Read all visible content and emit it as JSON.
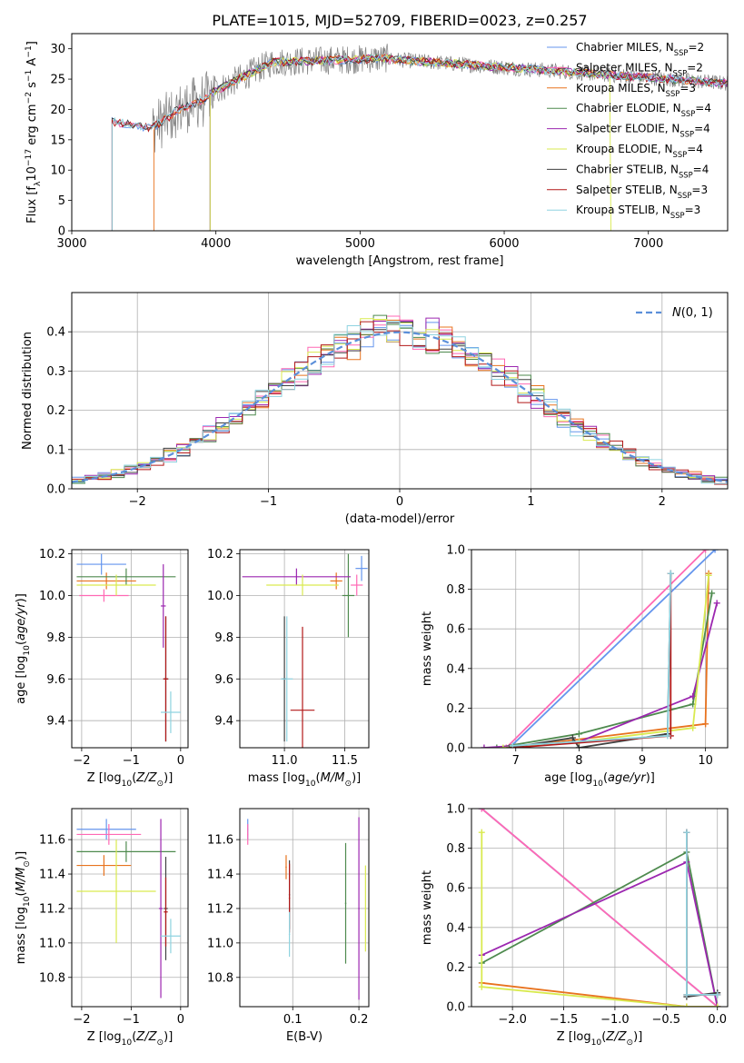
{
  "figure": {
    "title": "PLATE=1015, MJD=52709, FIBERID=0023, z=0.257"
  },
  "series_styles": [
    {
      "name": "Chabrier MILES",
      "nssp": "2",
      "color": "#6495ed"
    },
    {
      "name": "Salpeter MILES",
      "nssp": "2",
      "color": "#ff69b4"
    },
    {
      "name": "Kroupa MILES",
      "nssp": "3",
      "color": "#e8731f"
    },
    {
      "name": "Chabrier ELODIE",
      "nssp": "4",
      "color": "#4e8a4e"
    },
    {
      "name": "Salpeter ELODIE",
      "nssp": "4",
      "color": "#9c27b0"
    },
    {
      "name": "Kroupa ELODIE",
      "nssp": "4",
      "color": "#d9ea4f"
    },
    {
      "name": "Chabrier STELIB",
      "nssp": "4",
      "color": "#404040"
    },
    {
      "name": "Salpeter STELIB",
      "nssp": "3",
      "color": "#b21818"
    },
    {
      "name": "Kroupa STELIB",
      "nssp": "3",
      "color": "#8fd3e0"
    }
  ],
  "chart_data": [
    {
      "id": "spectrum",
      "type": "line",
      "xlabel": "wavelength [Angstrom, rest frame]",
      "ylabel": "Flux [f_λ10^-17 erg cm^-2 s^-1 A^-1]",
      "xlim": [
        3000,
        7550
      ],
      "ylim": [
        0,
        32.5
      ],
      "xticks": [
        3000,
        4000,
        5000,
        6000,
        7000
      ],
      "yticks": [
        0,
        5,
        10,
        15,
        20,
        25,
        30
      ],
      "legend_location": "upper right",
      "data_series": {
        "name": "data",
        "color": "#808080",
        "x_range": [
          3280,
          7550
        ]
      },
      "model_starts": [
        3280,
        3280,
        3570,
        3960,
        3960,
        3960,
        3280,
        3280,
        3280
      ],
      "model_ends": [
        7550,
        7550,
        7550,
        7550,
        7550,
        6740,
        7550,
        7550,
        7550
      ]
    },
    {
      "id": "residuals",
      "type": "histogram",
      "xlabel": "(data-model)/error",
      "ylabel": "Normed distribution",
      "xlim": [
        -2.5,
        2.5
      ],
      "ylim": [
        0,
        0.5
      ],
      "xticks": [
        -2,
        -1,
        0,
        1,
        2
      ],
      "yticks": [
        0.0,
        0.1,
        0.2,
        0.3,
        0.4
      ],
      "grid": true,
      "bin_width": 0.1,
      "reference_curve": {
        "name": "N(0,1)",
        "style": "dashed",
        "color": "#5b8fd9"
      },
      "legend_location": "upper right"
    },
    {
      "id": "age-vs-Z",
      "type": "errorbar",
      "xlabel": "Z [log10(Z/Z⊙)]",
      "ylabel": "age [log10(age/yr)]",
      "xlim": [
        -2.2,
        0.15
      ],
      "ylim": [
        9.27,
        10.22
      ],
      "xticks": [
        -2,
        -1,
        0
      ],
      "yticks": [
        9.4,
        9.6,
        9.8,
        10.0,
        10.2
      ],
      "grid": true,
      "points": [
        {
          "series": 0,
          "x": -1.6,
          "xerr": 0.5,
          "y": 10.15,
          "yerr": 0.05
        },
        {
          "series": 1,
          "x": -1.55,
          "xerr": 0.5,
          "y": 10.0,
          "yerr": 0.03
        },
        {
          "series": 2,
          "x": -1.5,
          "xerr": 0.6,
          "y": 10.07,
          "yerr": 0.04
        },
        {
          "series": 3,
          "x": -1.1,
          "xerr": 1.0,
          "y": 10.09,
          "yerr": 0.04
        },
        {
          "series": 4,
          "x": -0.35,
          "xerr": 0.05,
          "y": 9.95,
          "yerr": 0.2
        },
        {
          "series": 5,
          "x": -1.3,
          "xerr": 0.8,
          "y": 10.05,
          "yerr": 0.05
        },
        {
          "series": 6,
          "x": -0.3,
          "xerr": 0.05,
          "y": 9.6,
          "yerr": 0.3
        },
        {
          "series": 7,
          "x": -0.3,
          "xerr": 0.05,
          "y": 9.6,
          "yerr": 0.3
        },
        {
          "series": 8,
          "x": -0.2,
          "xerr": 0.2,
          "y": 9.44,
          "yerr": 0.1
        }
      ]
    },
    {
      "id": "age-vs-mass",
      "type": "errorbar",
      "xlabel": "mass [log10(M/M⊙)]",
      "ylabel": "",
      "xlim": [
        10.63,
        11.7
      ],
      "ylim": [
        9.27,
        10.22
      ],
      "xticks": [
        11.0,
        11.5
      ],
      "yticks": [
        9.4,
        9.6,
        9.8,
        10.0,
        10.2
      ],
      "grid": true,
      "points": [
        {
          "series": 0,
          "x": 11.64,
          "xerr": 0.05,
          "y": 10.13,
          "yerr": 0.06
        },
        {
          "series": 1,
          "x": 11.6,
          "xerr": 0.05,
          "y": 10.05,
          "yerr": 0.05
        },
        {
          "series": 2,
          "x": 11.43,
          "xerr": 0.05,
          "y": 10.07,
          "yerr": 0.04
        },
        {
          "series": 3,
          "x": 11.53,
          "xerr": 0.05,
          "y": 10.0,
          "yerr": 0.2
        },
        {
          "series": 4,
          "x": 11.1,
          "xerr": 0.45,
          "y": 10.09,
          "yerr": 0.04
        },
        {
          "series": 5,
          "x": 11.15,
          "xerr": 0.3,
          "y": 10.05,
          "yerr": 0.05
        },
        {
          "series": 6,
          "x": 11.0,
          "xerr": 0.02,
          "y": 9.6,
          "yerr": 0.3
        },
        {
          "series": 7,
          "x": 11.15,
          "xerr": 0.1,
          "y": 9.45,
          "yerr": 0.4
        },
        {
          "series": 8,
          "x": 11.02,
          "xerr": 0.05,
          "y": 9.6,
          "yerr": 0.3
        }
      ]
    },
    {
      "id": "mass-weight-vs-age",
      "type": "line",
      "xlabel": "age [log10(age/yr)]",
      "ylabel": "mass weight",
      "xlim": [
        6.3,
        10.35
      ],
      "ylim": [
        0,
        1
      ],
      "xticks": [
        7,
        8,
        9,
        10
      ],
      "yticks": [
        0.0,
        0.2,
        0.4,
        0.6,
        0.8,
        1.0
      ],
      "grid": true,
      "lines": [
        {
          "series": 0,
          "x": [
            6.9,
            10.15
          ],
          "y": [
            0.0,
            1.0
          ]
        },
        {
          "series": 1,
          "x": [
            6.85,
            10.0
          ],
          "y": [
            0.0,
            1.0
          ]
        },
        {
          "series": 2,
          "x": [
            6.9,
            10.0,
            10.05
          ],
          "y": [
            0.0,
            0.12,
            0.88
          ]
        },
        {
          "series": 3,
          "x": [
            6.7,
            8.0,
            9.8,
            10.1
          ],
          "y": [
            0.0,
            0.07,
            0.22,
            0.78
          ]
        },
        {
          "series": 4,
          "x": [
            6.5,
            8.0,
            9.8,
            10.18
          ],
          "y": [
            0.0,
            0.03,
            0.26,
            0.73
          ]
        },
        {
          "series": 5,
          "x": [
            6.8,
            8.0,
            9.8,
            10.05
          ],
          "y": [
            0.0,
            0.03,
            0.1,
            0.87
          ]
        },
        {
          "series": 6,
          "x": [
            6.9,
            7.9,
            8.0,
            9.4,
            9.45
          ],
          "y": [
            0.0,
            0.05,
            0.0,
            0.07,
            0.88
          ]
        },
        {
          "series": 7,
          "x": [
            6.95,
            9.45,
            9.45
          ],
          "y": [
            0.0,
            0.06,
            0.88
          ]
        },
        {
          "series": 8,
          "x": [
            6.95,
            9.4,
            9.45
          ],
          "y": [
            0.01,
            0.06,
            0.88
          ]
        }
      ]
    },
    {
      "id": "mass-vs-Z",
      "type": "errorbar",
      "xlabel": "Z [log10(Z/Z⊙)]",
      "ylabel": "mass [log10(M/M⊙)]",
      "xlim": [
        -2.2,
        0.15
      ],
      "ylim": [
        10.63,
        11.78
      ],
      "xticks": [
        -2,
        -1,
        0
      ],
      "yticks": [
        10.8,
        11.0,
        11.2,
        11.4,
        11.6
      ],
      "grid": true,
      "points": [
        {
          "series": 0,
          "x": -1.5,
          "xerr": 0.6,
          "y": 11.66,
          "yerr": 0.06
        },
        {
          "series": 1,
          "x": -1.45,
          "xerr": 0.65,
          "y": 11.63,
          "yerr": 0.06
        },
        {
          "series": 2,
          "x": -1.55,
          "xerr": 0.55,
          "y": 11.45,
          "yerr": 0.06
        },
        {
          "series": 3,
          "x": -1.1,
          "xerr": 1.0,
          "y": 11.53,
          "yerr": 0.06
        },
        {
          "series": 4,
          "x": -0.4,
          "xerr": 0.04,
          "y": 11.2,
          "yerr": 0.52
        },
        {
          "series": 5,
          "x": -1.3,
          "xerr": 0.8,
          "y": 11.3,
          "yerr": 0.3
        },
        {
          "series": 6,
          "x": -0.3,
          "xerr": 0.04,
          "y": 11.2,
          "yerr": 0.3
        },
        {
          "series": 7,
          "x": -0.3,
          "xerr": 0.04,
          "y": 11.18,
          "yerr": 0.2
        },
        {
          "series": 8,
          "x": -0.2,
          "xerr": 0.2,
          "y": 11.04,
          "yerr": 0.1
        }
      ]
    },
    {
      "id": "mass-vs-EBV",
      "type": "errorbar",
      "xlabel": "E(B-V)",
      "ylabel": "",
      "xlim": [
        0.02,
        0.215
      ],
      "ylim": [
        10.63,
        11.78
      ],
      "xticks": [
        0.1,
        0.2
      ],
      "yticks": [
        10.8,
        11.0,
        11.2,
        11.4,
        11.6
      ],
      "grid": true,
      "points": [
        {
          "series": 0,
          "x": 0.032,
          "xerr": 0.001,
          "y": 11.66,
          "yerr": 0.06
        },
        {
          "series": 1,
          "x": 0.032,
          "xerr": 0.001,
          "y": 11.63,
          "yerr": 0.06
        },
        {
          "series": 2,
          "x": 0.09,
          "xerr": 0.001,
          "y": 11.44,
          "yerr": 0.07
        },
        {
          "series": 3,
          "x": 0.18,
          "xerr": 0.001,
          "y": 11.23,
          "yerr": 0.35
        },
        {
          "series": 4,
          "x": 0.2,
          "xerr": 0.001,
          "y": 11.2,
          "yerr": 0.53
        },
        {
          "series": 5,
          "x": 0.21,
          "xerr": 0.001,
          "y": 11.2,
          "yerr": 0.25
        },
        {
          "series": 6,
          "x": 0.095,
          "xerr": 0.001,
          "y": 11.28,
          "yerr": 0.2
        },
        {
          "series": 7,
          "x": 0.095,
          "xerr": 0.001,
          "y": 11.26,
          "yerr": 0.2
        },
        {
          "series": 8,
          "x": 0.095,
          "xerr": 0.001,
          "y": 11.05,
          "yerr": 0.13
        }
      ]
    },
    {
      "id": "mass-weight-vs-Z",
      "type": "line",
      "xlabel": "Z [log10(Z/Z⊙)]",
      "ylabel": "mass weight",
      "xlim": [
        -2.4,
        0.1
      ],
      "ylim": [
        0,
        1
      ],
      "xticks": [
        -2.0,
        -1.5,
        -1.0,
        -0.5,
        0.0
      ],
      "yticks": [
        0.0,
        0.2,
        0.4,
        0.6,
        0.8,
        1.0
      ],
      "grid": true,
      "lines": [
        {
          "series": 0,
          "x": [
            -2.3,
            0.0
          ],
          "y": [
            1.0,
            0.0
          ]
        },
        {
          "series": 1,
          "x": [
            -2.3,
            0.0
          ],
          "y": [
            1.0,
            0.0
          ]
        },
        {
          "series": 2,
          "x": [
            -2.3,
            -0.3,
            0.0
          ],
          "y": [
            0.12,
            0.0,
            0.0
          ]
        },
        {
          "series": 3,
          "x": [
            -2.3,
            -0.3,
            0.0
          ],
          "y": [
            0.22,
            0.78,
            0.0
          ]
        },
        {
          "series": 4,
          "x": [
            -2.3,
            -0.3,
            0.0
          ],
          "y": [
            0.26,
            0.73,
            0.0
          ]
        },
        {
          "series": 5,
          "x": [
            -2.3,
            -2.3,
            -0.3,
            0.0
          ],
          "y": [
            0.88,
            0.1,
            0.0,
            0.0
          ]
        },
        {
          "series": 6,
          "x": [
            -0.3,
            -0.3,
            0.0
          ],
          "y": [
            0.88,
            0.05,
            0.07
          ]
        },
        {
          "series": 7,
          "x": [
            -0.3,
            -0.3,
            0.0
          ],
          "y": [
            0.88,
            0.06,
            0.06
          ]
        },
        {
          "series": 8,
          "x": [
            -0.3,
            -0.3,
            0.0
          ],
          "y": [
            0.88,
            0.06,
            0.06
          ]
        }
      ]
    }
  ]
}
